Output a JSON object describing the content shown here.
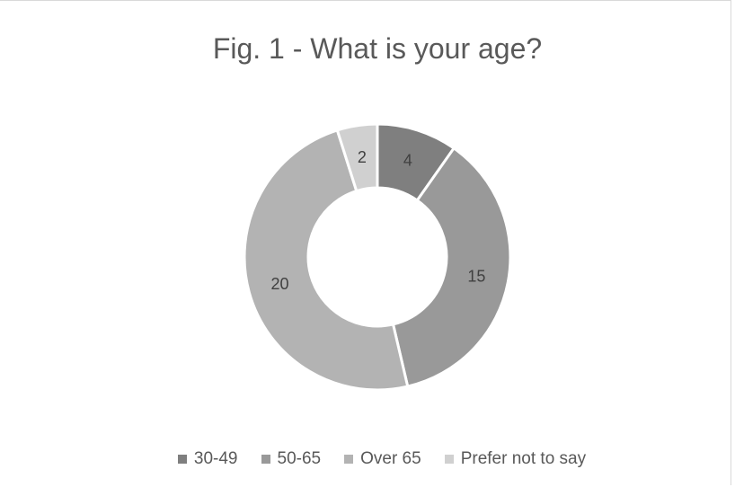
{
  "chart_data": {
    "type": "pie",
    "variant": "doughnut",
    "title": "Fig. 1 - What is your age?",
    "categories": [
      "30-49",
      "50-65",
      "Over 65",
      "Prefer not to say"
    ],
    "values": [
      4,
      15,
      20,
      2
    ],
    "colors": [
      "#7f7f7f",
      "#999999",
      "#b3b3b3",
      "#d0d0d0"
    ],
    "data_labels_shown": true,
    "legend_position": "bottom"
  }
}
